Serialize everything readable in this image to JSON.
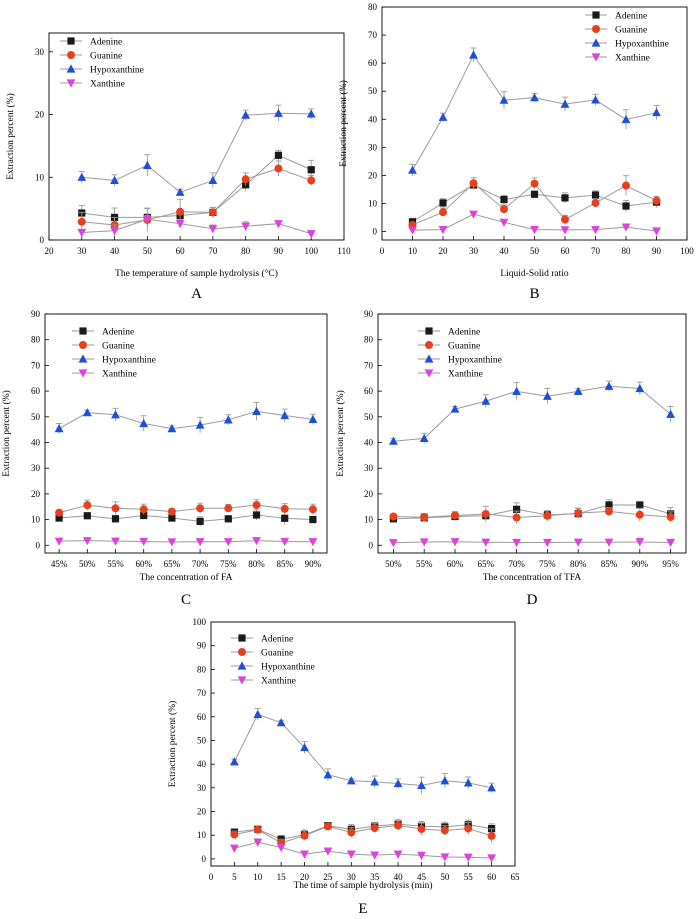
{
  "series_styles": [
    {
      "name": "Adenine",
      "color": "#1a1a1a",
      "marker": "square"
    },
    {
      "name": "Guanine",
      "color": "#e8401c",
      "marker": "circle"
    },
    {
      "name": "Hypoxanthine",
      "color": "#1f4fd8",
      "marker": "triangle-up"
    },
    {
      "name": "Xanthine",
      "color": "#e040e0",
      "marker": "triangle-down"
    }
  ],
  "line_color": "#9a9a9a",
  "chart_data": [
    {
      "panel": "A",
      "type": "line",
      "xlabel": "The temperature of sample hydrolysis  (°C)",
      "ylabel": "Extraction percent  (%)",
      "xlim": [
        20,
        110
      ],
      "ylim": [
        0,
        33
      ],
      "xticks": [
        "20",
        "30",
        "40",
        "50",
        "60",
        "70",
        "80",
        "90",
        "100",
        "110"
      ],
      "yticks": [
        "0",
        "10",
        "20",
        "30"
      ],
      "x": [
        30,
        40,
        50,
        60,
        70,
        80,
        90,
        100
      ],
      "legend": "top-left",
      "series": [
        {
          "name": "Adenine",
          "values": [
            4.3,
            3.6,
            3.6,
            3.9,
            4.4,
            8.8,
            13.5,
            11.2
          ],
          "errors": [
            1.2,
            1.5,
            1.5,
            1.0,
            0.8,
            1.0,
            0.8,
            1.5
          ]
        },
        {
          "name": "Guanine",
          "values": [
            2.9,
            2.4,
            3.2,
            4.5,
            4.4,
            9.7,
            11.4,
            9.5
          ],
          "errors": [
            1.5,
            1.2,
            1.8,
            2.0,
            0.8,
            1.0,
            1.2,
            0.8
          ]
        },
        {
          "name": "Hypoxanthine",
          "values": [
            10.0,
            9.5,
            11.9,
            7.6,
            9.5,
            19.9,
            20.2,
            20.1
          ],
          "errors": [
            0.9,
            0.9,
            1.7,
            0.5,
            1.2,
            0.8,
            1.3,
            0.8
          ]
        },
        {
          "name": "Xanthine",
          "values": [
            1.2,
            1.5,
            3.3,
            2.6,
            1.8,
            2.2,
            2.6,
            1.0
          ],
          "errors": [
            0.4,
            0.9,
            0.6,
            0.6,
            0.6,
            0.7,
            0.3,
            0.3
          ]
        }
      ],
      "caption": "A"
    },
    {
      "panel": "B",
      "type": "line",
      "xlabel": "Liquid-Solid ratio",
      "ylabel": "Extraction percent  (%)",
      "xlim": [
        0,
        100
      ],
      "ylim": [
        -3,
        80
      ],
      "xticks": [
        "0",
        "10",
        "20",
        "30",
        "40",
        "50",
        "60",
        "70",
        "80",
        "90",
        "100"
      ],
      "yticks": [
        "0",
        "10",
        "20",
        "30",
        "40",
        "50",
        "60",
        "70",
        "80"
      ],
      "x": [
        10,
        20,
        30,
        40,
        50,
        60,
        70,
        80,
        90
      ],
      "legend": "top-right",
      "series": [
        {
          "name": "Adenine",
          "values": [
            3.5,
            10.2,
            16.6,
            11.4,
            13.3,
            12.0,
            13.0,
            9.1,
            10.5
          ],
          "errors": [
            0.8,
            1.5,
            1.7,
            1.5,
            1.0,
            1.8,
            1.5,
            2.0,
            2.0
          ]
        },
        {
          "name": "Guanine",
          "values": [
            2.4,
            6.9,
            17.2,
            8.0,
            17.1,
            4.3,
            10.2,
            16.4,
            11.0
          ],
          "errors": [
            0.8,
            1.5,
            2.0,
            1.5,
            2.0,
            1.5,
            1.5,
            3.5,
            1.5
          ]
        },
        {
          "name": "Hypoxanthine",
          "values": [
            21.9,
            40.7,
            62.9,
            46.8,
            47.7,
            45.4,
            46.9,
            39.9,
            42.4
          ],
          "errors": [
            2.0,
            1.5,
            2.5,
            3.0,
            1.5,
            2.5,
            2.0,
            3.5,
            2.5
          ]
        },
        {
          "name": "Xanthine",
          "values": [
            0.5,
            0.7,
            6.2,
            3.3,
            0.7,
            0.6,
            0.7,
            1.6,
            0.2
          ],
          "errors": [
            0.3,
            0.3,
            0.5,
            0.5,
            0.3,
            0.3,
            0.3,
            0.3,
            0.2
          ]
        }
      ],
      "caption": "B"
    },
    {
      "panel": "C",
      "type": "line",
      "xlabel": "The concentration of FA",
      "ylabel": "Extraction percent  (%)",
      "categories": [
        "45%",
        "50%",
        "55%",
        "60%",
        "65%",
        "70%",
        "75%",
        "80%",
        "85%",
        "90%"
      ],
      "ylim": [
        -3,
        90
      ],
      "yticks": [
        "0",
        "10",
        "20",
        "30",
        "40",
        "50",
        "60",
        "70",
        "80",
        "90"
      ],
      "legend": "top-left",
      "series": [
        {
          "name": "Adenine",
          "values": [
            10.6,
            11.5,
            10.3,
            11.6,
            10.6,
            9.3,
            10.3,
            11.8,
            10.5,
            10.0
          ],
          "errors": [
            0.8,
            1.0,
            1.3,
            1.5,
            0.8,
            1.8,
            1.0,
            2.0,
            2.5,
            0.8
          ]
        },
        {
          "name": "Guanine",
          "values": [
            12.7,
            15.6,
            14.4,
            14.0,
            13.1,
            14.4,
            14.4,
            15.7,
            14.2,
            14.0
          ],
          "errors": [
            1.0,
            2.0,
            2.5,
            2.0,
            1.0,
            2.0,
            1.5,
            2.0,
            2.0,
            2.0
          ]
        },
        {
          "name": "Hypoxanthine",
          "values": [
            45.4,
            51.6,
            50.8,
            47.4,
            45.4,
            46.8,
            48.8,
            52.1,
            50.5,
            49.0
          ],
          "errors": [
            2.0,
            1.0,
            2.5,
            3.0,
            1.0,
            3.0,
            2.0,
            3.5,
            2.5,
            2.0
          ]
        },
        {
          "name": "Xanthine",
          "values": [
            1.6,
            1.8,
            1.6,
            1.5,
            1.3,
            1.4,
            1.4,
            1.8,
            1.5,
            1.4
          ],
          "errors": [
            0.3,
            0.3,
            0.3,
            0.3,
            0.3,
            0.3,
            0.3,
            1.0,
            0.3,
            0.3
          ]
        }
      ],
      "caption": "C"
    },
    {
      "panel": "D",
      "type": "line",
      "xlabel": "The concentration of TFA",
      "ylabel": "Extraction percent  (%)",
      "categories": [
        "50%",
        "55%",
        "60%",
        "65%",
        "70%",
        "75%",
        "80%",
        "85%",
        "90%",
        "95%"
      ],
      "ylim": [
        -3,
        90
      ],
      "yticks": [
        "0",
        "10",
        "20",
        "30",
        "40",
        "50",
        "60",
        "70",
        "80",
        "90"
      ],
      "legend": "top-left",
      "series": [
        {
          "name": "Adenine",
          "values": [
            10.3,
            10.7,
            11.2,
            11.5,
            14.0,
            11.8,
            12.3,
            15.7,
            15.7,
            12.2
          ],
          "errors": [
            1.0,
            1.5,
            1.5,
            1.5,
            2.5,
            1.5,
            2.0,
            2.0,
            1.0,
            2.5
          ]
        },
        {
          "name": "Guanine",
          "values": [
            11.2,
            10.9,
            11.6,
            12.2,
            10.8,
            11.5,
            12.5,
            13.2,
            11.9,
            11.0
          ],
          "errors": [
            1.0,
            1.5,
            1.5,
            3.0,
            2.5,
            2.0,
            2.0,
            1.5,
            2.5,
            2.0
          ]
        },
        {
          "name": "Hypoxanthine",
          "values": [
            40.5,
            41.6,
            53.0,
            56.1,
            59.9,
            58.0,
            59.9,
            61.9,
            61.0,
            51.0
          ],
          "errors": [
            1.0,
            2.0,
            1.0,
            2.5,
            3.5,
            3.0,
            1.0,
            2.0,
            2.5,
            3.0
          ]
        },
        {
          "name": "Xanthine",
          "values": [
            1.0,
            1.3,
            1.4,
            1.2,
            1.1,
            1.1,
            1.2,
            1.2,
            1.3,
            1.1
          ],
          "errors": [
            0.3,
            0.3,
            0.3,
            0.3,
            0.3,
            0.3,
            0.3,
            0.3,
            1.5,
            0.3
          ]
        }
      ],
      "caption": "D"
    },
    {
      "panel": "E",
      "type": "line",
      "xlabel": "The time of sample hydrolysis  (min)",
      "ylabel": "Extraction percent  (%)",
      "xlim": [
        0,
        65
      ],
      "ylim": [
        -3,
        100
      ],
      "xticks": [
        "0",
        "5",
        "10",
        "15",
        "20",
        "25",
        "30",
        "35",
        "40",
        "45",
        "50",
        "55",
        "60",
        "65"
      ],
      "yticks": [
        "0",
        "10",
        "20",
        "30",
        "40",
        "50",
        "60",
        "70",
        "80",
        "90",
        "100"
      ],
      "x": [
        5,
        10,
        15,
        20,
        25,
        30,
        35,
        40,
        45,
        50,
        55,
        60
      ],
      "legend": "top-left",
      "series": [
        {
          "name": "Adenine",
          "values": [
            11.3,
            12.5,
            8.3,
            10.2,
            14.0,
            12.5,
            13.8,
            14.7,
            13.8,
            13.5,
            14.4,
            12.8
          ],
          "errors": [
            1.0,
            1.0,
            1.5,
            2.0,
            1.0,
            2.0,
            1.5,
            2.0,
            2.0,
            2.0,
            2.0,
            2.0
          ]
        },
        {
          "name": "Guanine",
          "values": [
            10.3,
            12.3,
            6.8,
            9.8,
            13.7,
            11.2,
            13.0,
            14.1,
            12.6,
            12.0,
            12.8,
            9.7
          ],
          "errors": [
            1.5,
            1.0,
            1.5,
            2.0,
            1.0,
            2.0,
            2.0,
            2.0,
            2.5,
            2.0,
            2.5,
            3.0
          ]
        },
        {
          "name": "Hypoxanthine",
          "values": [
            41.0,
            61.0,
            57.5,
            47.0,
            35.5,
            33.0,
            32.5,
            31.8,
            31.0,
            33.0,
            32.1,
            30.0
          ],
          "errors": [
            1.0,
            2.5,
            1.0,
            2.5,
            2.5,
            1.0,
            2.5,
            2.0,
            3.5,
            3.0,
            2.5,
            2.0
          ]
        },
        {
          "name": "Xanthine",
          "values": [
            4.5,
            7.0,
            4.8,
            2.0,
            3.3,
            2.0,
            1.6,
            2.0,
            1.5,
            0.8,
            0.7,
            0.4
          ],
          "errors": [
            1.0,
            1.5,
            1.0,
            0.5,
            0.5,
            0.5,
            0.5,
            0.5,
            0.5,
            0.5,
            0.3,
            0.3
          ]
        }
      ],
      "caption": "E"
    }
  ]
}
